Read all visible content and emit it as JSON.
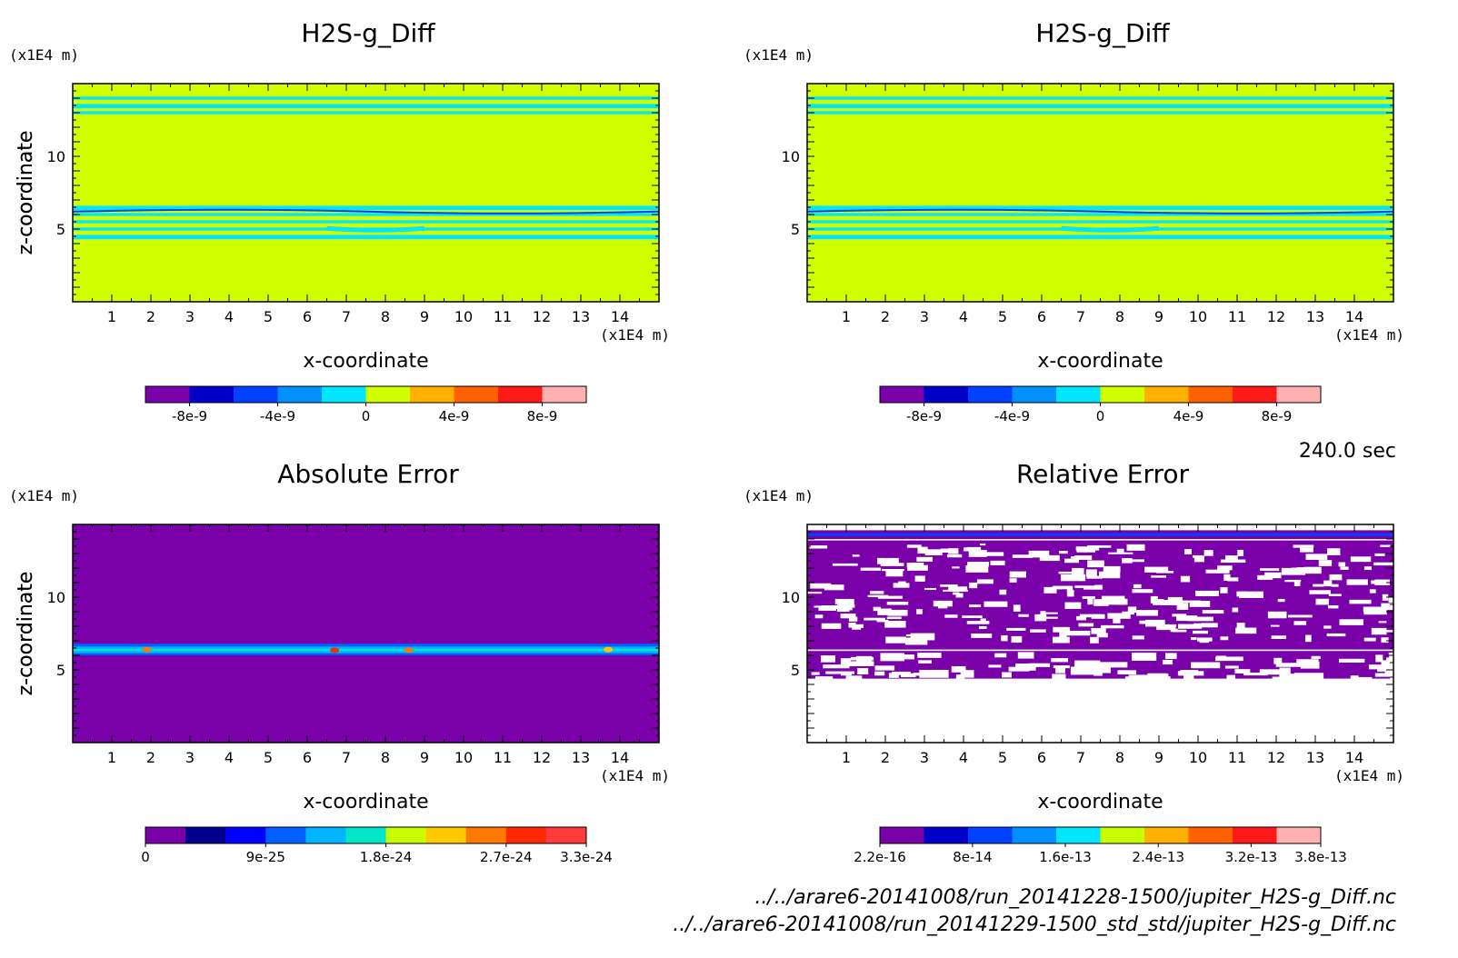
{
  "chart_data": [
    {
      "type": "heatmap",
      "title": "H2S-g_Diff",
      "xlabel": "x-coordinate",
      "ylabel": "z-coordinate",
      "x_unit": "(x1E4 m)",
      "y_unit": "(x1E4 m)",
      "xticks": [
        "1",
        "2",
        "3",
        "4",
        "5",
        "6",
        "7",
        "8",
        "9",
        "10",
        "11",
        "12",
        "13",
        "14"
      ],
      "yticks": [
        "5",
        "10"
      ],
      "xlim": [
        0,
        15
      ],
      "ylim": [
        0,
        15
      ],
      "colorbar": {
        "colors": [
          "#7a00aa",
          "#0000c8",
          "#0040ff",
          "#0090ff",
          "#00e6ff",
          "#d0ff00",
          "#ffb000",
          "#ff6000",
          "#ff1a1a",
          "#ffb0b0"
        ],
        "ticks": [
          "-8e-9",
          "-4e-9",
          "0",
          "4e-9",
          "8e-9"
        ],
        "tick_values": [
          -8e-09,
          -4e-09,
          0,
          4e-09,
          8e-09
        ],
        "range": [
          -1e-08,
          1e-08
        ]
      },
      "background": "#d0ff00",
      "bands": [
        {
          "z": [
            13.9,
            14.1
          ],
          "color": "#00e6ff"
        },
        {
          "z": [
            13.3,
            13.6
          ],
          "color": "#00e6ff"
        },
        {
          "z": [
            12.9,
            13.1
          ],
          "color": "#00e6ff"
        },
        {
          "z": [
            6.3,
            6.6
          ],
          "color": "#00e6ff"
        },
        {
          "z": [
            5.9,
            6.1
          ],
          "color": "#00e6ff"
        },
        {
          "z": [
            5.4,
            5.6
          ],
          "color": "#00e6ff"
        },
        {
          "z": [
            4.9,
            5.1
          ],
          "color": "#00e6ff"
        },
        {
          "z": [
            4.3,
            4.6
          ],
          "color": "#00e6ff"
        }
      ]
    },
    {
      "type": "heatmap",
      "title": "H2S-g_Diff",
      "xlabel": "x-coordinate",
      "ylabel": "z-coordinate",
      "x_unit": "(x1E4 m)",
      "y_unit": "(x1E4 m)",
      "xticks": [
        "1",
        "2",
        "3",
        "4",
        "5",
        "6",
        "7",
        "8",
        "9",
        "10",
        "11",
        "12",
        "13",
        "14"
      ],
      "yticks": [
        "5",
        "10"
      ],
      "xlim": [
        0,
        15
      ],
      "ylim": [
        0,
        15
      ],
      "colorbar": {
        "colors": [
          "#7a00aa",
          "#0000c8",
          "#0040ff",
          "#0090ff",
          "#00e6ff",
          "#d0ff00",
          "#ffb000",
          "#ff6000",
          "#ff1a1a",
          "#ffb0b0"
        ],
        "ticks": [
          "-8e-9",
          "-4e-9",
          "0",
          "4e-9",
          "8e-9"
        ],
        "tick_values": [
          -8e-09,
          -4e-09,
          0,
          4e-09,
          8e-09
        ],
        "range": [
          -1e-08,
          1e-08
        ]
      },
      "background": "#d0ff00",
      "bands": [
        {
          "z": [
            13.9,
            14.1
          ],
          "color": "#00e6ff"
        },
        {
          "z": [
            13.3,
            13.6
          ],
          "color": "#00e6ff"
        },
        {
          "z": [
            12.9,
            13.1
          ],
          "color": "#00e6ff"
        },
        {
          "z": [
            6.3,
            6.6
          ],
          "color": "#00e6ff"
        },
        {
          "z": [
            5.9,
            6.1
          ],
          "color": "#00e6ff"
        },
        {
          "z": [
            5.4,
            5.6
          ],
          "color": "#00e6ff"
        },
        {
          "z": [
            4.9,
            5.1
          ],
          "color": "#00e6ff"
        },
        {
          "z": [
            4.3,
            4.6
          ],
          "color": "#00e6ff"
        }
      ]
    },
    {
      "type": "heatmap",
      "title": "Absolute Error",
      "xlabel": "x-coordinate",
      "ylabel": "z-coordinate",
      "x_unit": "(x1E4 m)",
      "y_unit": "(x1E4 m)",
      "xticks": [
        "1",
        "2",
        "3",
        "4",
        "5",
        "6",
        "7",
        "8",
        "9",
        "10",
        "11",
        "12",
        "13",
        "14"
      ],
      "yticks": [
        "5",
        "10"
      ],
      "xlim": [
        0,
        15
      ],
      "ylim": [
        0,
        15
      ],
      "colorbar": {
        "colors": [
          "#7a00aa",
          "#00008c",
          "#0000ff",
          "#0060ff",
          "#00b4ff",
          "#00e6c8",
          "#c8ff00",
          "#ffc800",
          "#ff7800",
          "#ff2800",
          "#ff3c3c"
        ],
        "ticks": [
          "0",
          "9e-25",
          "1.8e-24",
          "2.7e-24",
          "3.3e-24"
        ],
        "tick_values": [
          0,
          9e-25,
          1.8e-24,
          2.7e-24,
          3.3e-24
        ],
        "range": [
          0,
          3.3e-24
        ]
      },
      "background": "#7a00aa",
      "bands": [
        {
          "z": [
            6.0,
            6.8
          ],
          "color": "#0060ff"
        },
        {
          "z": [
            6.15,
            6.6
          ],
          "color": "#00b4ff"
        },
        {
          "z": [
            6.3,
            6.45
          ],
          "color": "#00e6c8"
        }
      ],
      "hotspots": [
        {
          "x": 1.9,
          "z": 6.4,
          "color": "#ff7800"
        },
        {
          "x": 6.7,
          "z": 6.35,
          "color": "#ff2800"
        },
        {
          "x": 8.6,
          "z": 6.35,
          "color": "#ff7800"
        },
        {
          "x": 13.7,
          "z": 6.4,
          "color": "#ffc800"
        }
      ]
    },
    {
      "type": "heatmap",
      "title": "Relative Error",
      "xlabel": "x-coordinate",
      "ylabel": "z-coordinate",
      "x_unit": "(x1E4 m)",
      "y_unit": "(x1E4 m)",
      "xticks": [
        "1",
        "2",
        "3",
        "4",
        "5",
        "6",
        "7",
        "8",
        "9",
        "10",
        "11",
        "12",
        "13",
        "14"
      ],
      "yticks": [
        "5",
        "10"
      ],
      "xlim": [
        0,
        15
      ],
      "ylim": [
        0,
        15
      ],
      "colorbar": {
        "colors": [
          "#7a00aa",
          "#0000c8",
          "#0040ff",
          "#0090ff",
          "#00e6ff",
          "#c8ff00",
          "#ffb000",
          "#ff6000",
          "#ff1a1a",
          "#ffb0b0"
        ],
        "ticks": [
          "2.2e-16",
          "8e-14",
          "1.6e-13",
          "2.4e-13",
          "3.2e-13",
          "3.8e-13"
        ],
        "tick_values": [
          2.2e-16,
          8e-14,
          1.6e-13,
          2.4e-13,
          3.2e-13,
          3.8e-13
        ],
        "range": [
          2.2e-16,
          3.8e-13
        ]
      },
      "background": "#ffffff",
      "bands": [
        {
          "z": [
            14.0,
            14.6
          ],
          "color": "#7a00aa"
        },
        {
          "z": [
            14.2,
            14.4
          ],
          "color": "#0040ff"
        },
        {
          "z": [
            6.4,
            13.9
          ],
          "color": "#7a00aa"
        },
        {
          "z": [
            4.4,
            6.3
          ],
          "color": "#7a00aa"
        }
      ]
    }
  ],
  "time_label": "240.0 sec",
  "files": [
    "../../arare6-20141008/run_20141228-1500/jupiter_H2S-g_Diff.nc",
    "../../arare6-20141008/run_20141229-1500_std_std/jupiter_H2S-g_Diff.nc"
  ]
}
